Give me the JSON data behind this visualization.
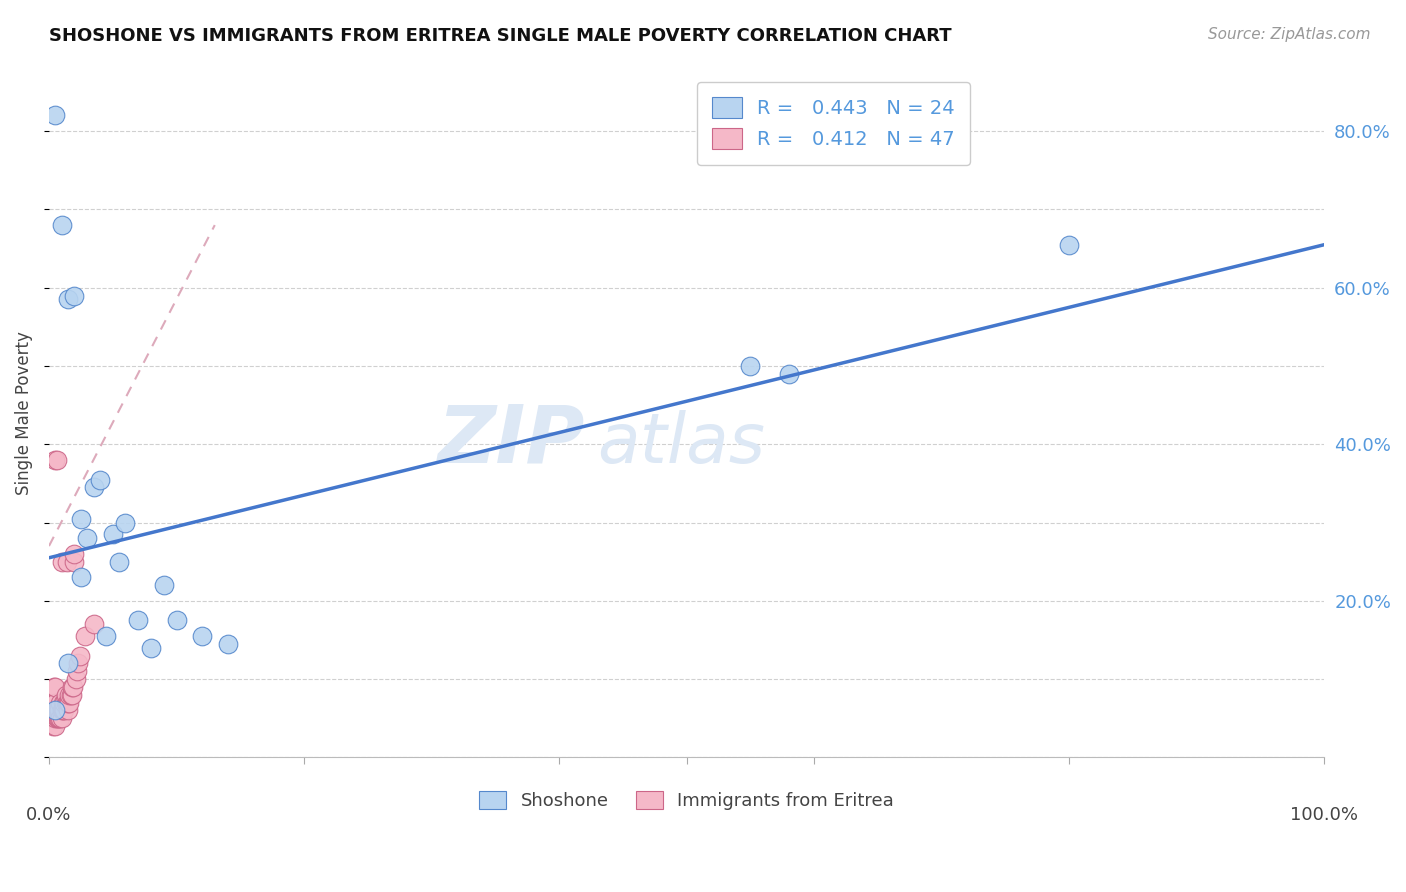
{
  "title": "SHOSHONE VS IMMIGRANTS FROM ERITREA SINGLE MALE POVERTY CORRELATION CHART",
  "source": "Source: ZipAtlas.com",
  "ylabel": "Single Male Poverty",
  "ytick_labels": [
    "20.0%",
    "40.0%",
    "60.0%",
    "80.0%"
  ],
  "ytick_values": [
    0.2,
    0.4,
    0.6,
    0.8
  ],
  "xlim": [
    0,
    1.0
  ],
  "ylim": [
    0,
    0.88
  ],
  "background_color": "#ffffff",
  "grid_color": "#d0d0d0",
  "shoshone_color": "#b8d4f0",
  "eritrea_color": "#f5b8c8",
  "shoshone_edge_color": "#5588cc",
  "eritrea_edge_color": "#cc6688",
  "trend_shoshone_color": "#4477cc",
  "watermark_color": "#dde8f5",
  "R_shoshone": 0.443,
  "N_shoshone": 24,
  "R_eritrea": 0.412,
  "N_eritrea": 47,
  "shoshone_x": [
    0.005,
    0.01,
    0.015,
    0.02,
    0.025,
    0.03,
    0.035,
    0.04,
    0.05,
    0.055,
    0.06,
    0.07,
    0.08,
    0.09,
    0.1,
    0.12,
    0.14,
    0.55,
    0.58,
    0.8,
    0.005,
    0.015,
    0.025,
    0.045
  ],
  "shoshone_y": [
    0.82,
    0.68,
    0.585,
    0.59,
    0.305,
    0.28,
    0.345,
    0.355,
    0.285,
    0.25,
    0.3,
    0.175,
    0.14,
    0.22,
    0.175,
    0.155,
    0.145,
    0.5,
    0.49,
    0.655,
    0.06,
    0.12,
    0.23,
    0.155
  ],
  "eritrea_x": [
    0.003,
    0.003,
    0.004,
    0.004,
    0.004,
    0.005,
    0.005,
    0.005,
    0.005,
    0.005,
    0.005,
    0.006,
    0.006,
    0.006,
    0.007,
    0.007,
    0.008,
    0.008,
    0.009,
    0.009,
    0.01,
    0.01,
    0.01,
    0.011,
    0.011,
    0.012,
    0.012,
    0.013,
    0.013,
    0.014,
    0.014,
    0.015,
    0.015,
    0.016,
    0.016,
    0.017,
    0.018,
    0.018,
    0.019,
    0.02,
    0.02,
    0.021,
    0.022,
    0.023,
    0.024,
    0.028,
    0.035
  ],
  "eritrea_y": [
    0.04,
    0.06,
    0.05,
    0.07,
    0.09,
    0.04,
    0.05,
    0.06,
    0.07,
    0.09,
    0.38,
    0.05,
    0.06,
    0.38,
    0.05,
    0.06,
    0.05,
    0.06,
    0.05,
    0.07,
    0.05,
    0.06,
    0.25,
    0.06,
    0.07,
    0.06,
    0.07,
    0.07,
    0.08,
    0.07,
    0.25,
    0.06,
    0.07,
    0.07,
    0.08,
    0.08,
    0.08,
    0.09,
    0.09,
    0.25,
    0.26,
    0.1,
    0.11,
    0.12,
    0.13,
    0.155,
    0.17
  ],
  "trend_shoshone_x0": 0.0,
  "trend_shoshone_x1": 1.0,
  "trend_shoshone_y0": 0.255,
  "trend_shoshone_y1": 0.655,
  "trend_eritrea_x0": 0.0,
  "trend_eritrea_x1": 0.13,
  "trend_eritrea_y0": 0.27,
  "trend_eritrea_y1": 0.68
}
